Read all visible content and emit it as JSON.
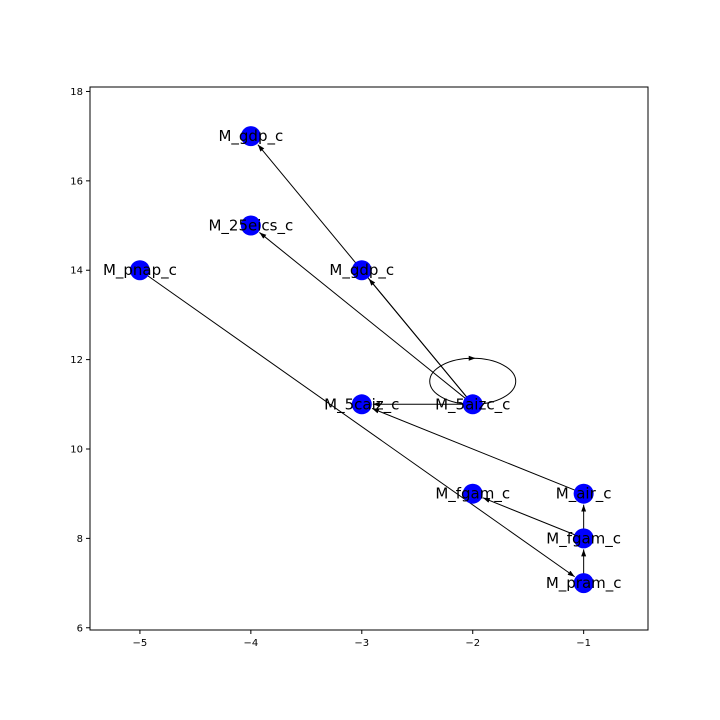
{
  "chart_data": {
    "type": "scatter",
    "title": "",
    "xlabel": "",
    "ylabel": "",
    "xlim": [
      -5.45,
      -0.42
    ],
    "ylim": [
      5.95,
      18.1
    ],
    "x_ticks": [
      -5,
      -4,
      -3,
      -2,
      -1
    ],
    "y_ticks": [
      6,
      8,
      10,
      12,
      14,
      16,
      18
    ],
    "x_tick_labels": [
      "−5",
      "−4",
      "−3",
      "−2",
      "−1"
    ],
    "y_tick_labels": [
      "6",
      "8",
      "10",
      "12",
      "14",
      "16",
      "18"
    ],
    "grid": false,
    "node_color": "#0000ff",
    "edge_color": "#000000",
    "nodes": [
      {
        "label": "M_gdp_c",
        "x": -4,
        "y": 17
      },
      {
        "label": "M_25eics_c",
        "x": -4,
        "y": 15
      },
      {
        "label": "M_pnap_c",
        "x": -5,
        "y": 14
      },
      {
        "label": "M_gdp_c",
        "x": -3,
        "y": 14
      },
      {
        "label": "M_5caiz_c",
        "x": -3,
        "y": 11
      },
      {
        "label": "M_5aizc_c",
        "x": -2,
        "y": 11
      },
      {
        "label": "M_fgam_c",
        "x": -2,
        "y": 9
      },
      {
        "label": "M_air_c",
        "x": -1,
        "y": 9
      },
      {
        "label": "M_fgam_c",
        "x": -1,
        "y": 8
      },
      {
        "label": "M_pram_c",
        "x": -1,
        "y": 7
      }
    ],
    "edges": [
      {
        "source": [
          -2,
          11
        ],
        "target": [
          -4,
          17
        ]
      },
      {
        "source": [
          -2,
          11
        ],
        "target": [
          -4,
          15
        ]
      },
      {
        "source": [
          -2,
          11
        ],
        "target": [
          -3,
          14
        ]
      },
      {
        "source": [
          -2,
          11
        ],
        "target": [
          -3,
          11
        ]
      },
      {
        "source": [
          -2,
          11
        ],
        "target": [
          -2,
          11
        ],
        "self_loop": true
      },
      {
        "source": [
          -5,
          14
        ],
        "target": [
          -1,
          7
        ]
      },
      {
        "source": [
          -1,
          9
        ],
        "target": [
          -3,
          11
        ]
      },
      {
        "source": [
          -1,
          8
        ],
        "target": [
          -2,
          9
        ]
      },
      {
        "source": [
          -1,
          8
        ],
        "target": [
          -1,
          9
        ]
      },
      {
        "source": [
          -1,
          7
        ],
        "target": [
          -1,
          8
        ]
      }
    ]
  }
}
